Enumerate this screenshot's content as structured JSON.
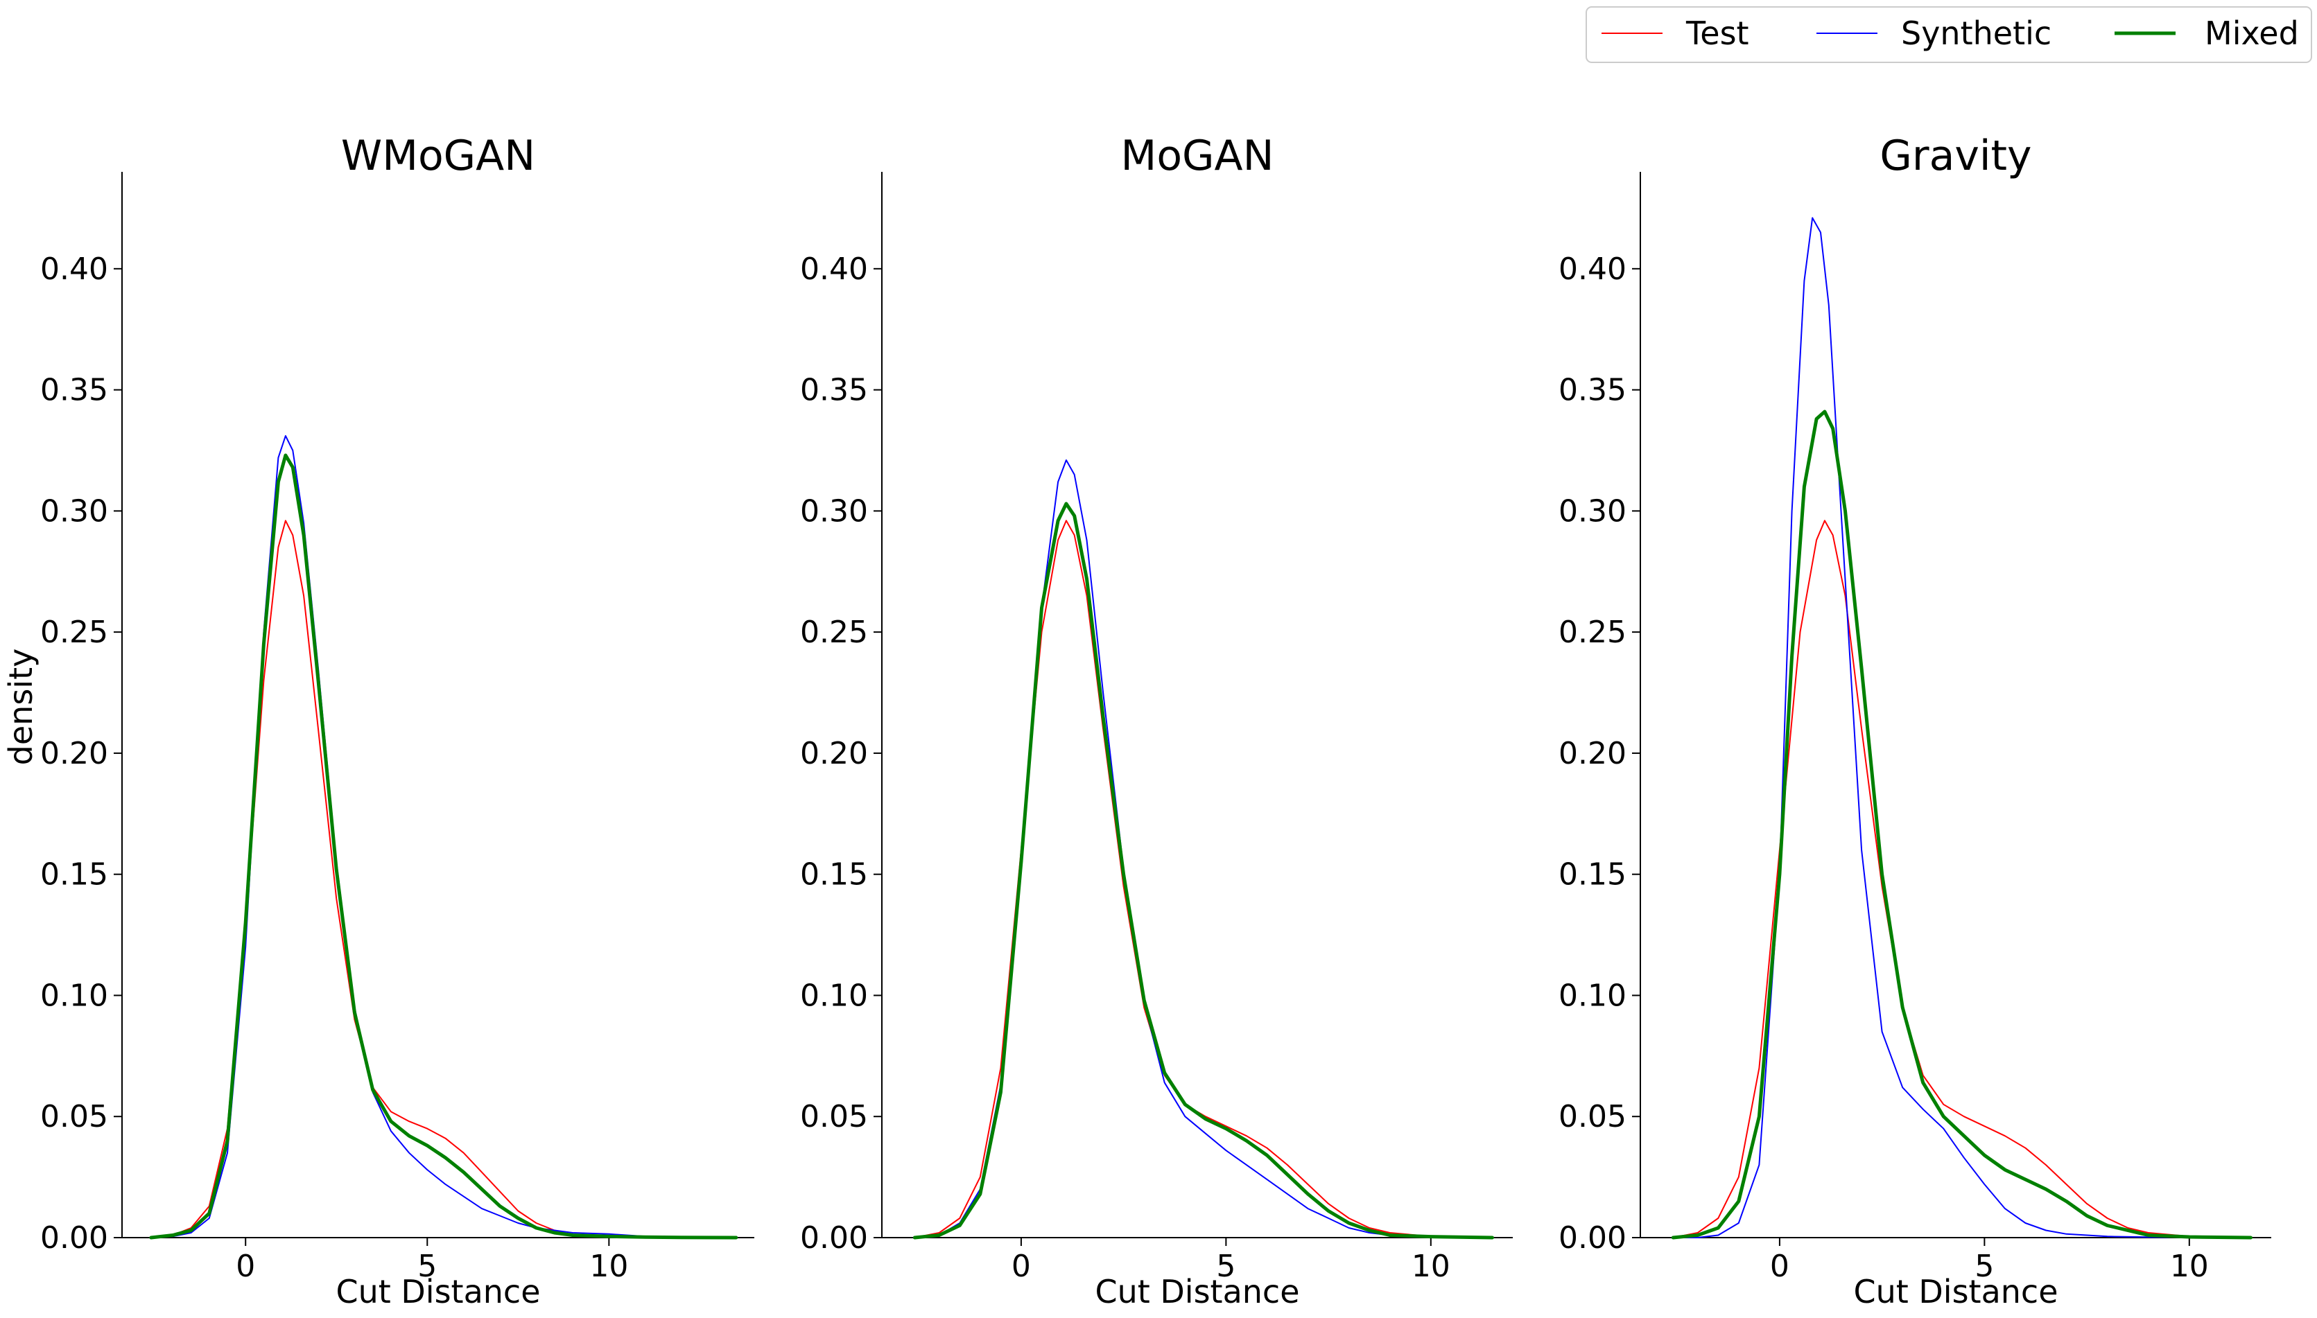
{
  "chart_data": [
    {
      "type": "line",
      "title": "WMoGAN",
      "xlabel": "Cut Distance",
      "ylabel": "density",
      "xlim": [
        -3.4,
        14.0
      ],
      "ylim": [
        0,
        0.44
      ],
      "xticks": [
        0,
        5,
        10
      ],
      "yticks": [
        0.0,
        0.05,
        0.1,
        0.15,
        0.2,
        0.25,
        0.3,
        0.35,
        0.4
      ],
      "ytick_labels": [
        "0.00",
        "0.05",
        "0.10",
        "0.15",
        "0.20",
        "0.25",
        "0.30",
        "0.35",
        "0.40"
      ],
      "series": [
        {
          "name": "Test",
          "color": "#ff0000",
          "x": [
            -2.6,
            -2.0,
            -1.5,
            -1.0,
            -0.5,
            0.0,
            0.5,
            0.9,
            1.1,
            1.3,
            1.6,
            2.0,
            2.5,
            3.0,
            3.5,
            4.0,
            4.5,
            5.0,
            5.5,
            6.0,
            6.5,
            7.0,
            7.5,
            8.0,
            8.5,
            9.0,
            10.0,
            11.0,
            12.0,
            13.5
          ],
          "y": [
            0.0,
            0.001,
            0.004,
            0.013,
            0.045,
            0.13,
            0.23,
            0.285,
            0.296,
            0.29,
            0.265,
            0.21,
            0.14,
            0.09,
            0.062,
            0.052,
            0.048,
            0.045,
            0.041,
            0.035,
            0.027,
            0.019,
            0.011,
            0.006,
            0.003,
            0.001,
            0.0005,
            0.0002,
            0.0001,
            0.0
          ]
        },
        {
          "name": "Synthetic",
          "color": "#0000ff",
          "x": [
            -2.6,
            -2.0,
            -1.5,
            -1.0,
            -0.5,
            0.0,
            0.5,
            0.9,
            1.1,
            1.3,
            1.6,
            2.0,
            2.5,
            3.0,
            3.5,
            4.0,
            4.5,
            5.0,
            5.5,
            6.0,
            6.5,
            7.0,
            7.5,
            8.0,
            8.5,
            9.0,
            10.0,
            11.0,
            12.0,
            13.5
          ],
          "y": [
            0.0,
            0.0005,
            0.002,
            0.008,
            0.035,
            0.12,
            0.25,
            0.322,
            0.331,
            0.325,
            0.295,
            0.235,
            0.155,
            0.095,
            0.06,
            0.044,
            0.035,
            0.028,
            0.022,
            0.017,
            0.012,
            0.009,
            0.006,
            0.004,
            0.003,
            0.002,
            0.0015,
            0.0005,
            0.0002,
            0.0
          ]
        },
        {
          "name": "Mixed",
          "color": "#008000",
          "x": [
            -2.6,
            -2.0,
            -1.5,
            -1.0,
            -0.5,
            0.0,
            0.5,
            0.9,
            1.1,
            1.3,
            1.6,
            2.0,
            2.5,
            3.0,
            3.5,
            4.0,
            4.5,
            5.0,
            5.5,
            6.0,
            6.5,
            7.0,
            7.5,
            8.0,
            8.5,
            9.0,
            10.0,
            11.0,
            12.0,
            13.5
          ],
          "y": [
            0.0,
            0.001,
            0.003,
            0.01,
            0.04,
            0.13,
            0.245,
            0.312,
            0.323,
            0.318,
            0.29,
            0.23,
            0.152,
            0.093,
            0.061,
            0.048,
            0.042,
            0.038,
            0.033,
            0.027,
            0.02,
            0.013,
            0.008,
            0.004,
            0.002,
            0.001,
            0.0005,
            0.0002,
            0.0001,
            0.0
          ]
        }
      ]
    },
    {
      "type": "line",
      "title": "MoGAN",
      "xlabel": "Cut Distance",
      "ylabel": "",
      "xlim": [
        -3.4,
        12.0
      ],
      "ylim": [
        0,
        0.44
      ],
      "xticks": [
        0,
        5,
        10
      ],
      "yticks": [
        0.0,
        0.05,
        0.1,
        0.15,
        0.2,
        0.25,
        0.3,
        0.35,
        0.4
      ],
      "ytick_labels": [
        "0.00",
        "0.05",
        "0.10",
        "0.15",
        "0.20",
        "0.25",
        "0.30",
        "0.35",
        "0.40"
      ],
      "series": [
        {
          "name": "Test",
          "color": "#ff0000",
          "x": [
            -2.6,
            -2.0,
            -1.5,
            -1.0,
            -0.5,
            0.0,
            0.5,
            0.9,
            1.1,
            1.3,
            1.6,
            2.0,
            2.5,
            3.0,
            3.5,
            4.0,
            4.5,
            5.0,
            5.5,
            6.0,
            6.5,
            7.0,
            7.5,
            8.0,
            8.5,
            9.0,
            10.0,
            11.5
          ],
          "y": [
            0.0,
            0.002,
            0.008,
            0.025,
            0.07,
            0.16,
            0.25,
            0.288,
            0.296,
            0.29,
            0.265,
            0.21,
            0.145,
            0.095,
            0.067,
            0.055,
            0.05,
            0.046,
            0.042,
            0.037,
            0.03,
            0.022,
            0.014,
            0.008,
            0.004,
            0.002,
            0.0005,
            0.0
          ]
        },
        {
          "name": "Synthetic",
          "color": "#0000ff",
          "x": [
            -2.6,
            -2.0,
            -1.5,
            -1.0,
            -0.5,
            0.0,
            0.5,
            0.9,
            1.1,
            1.3,
            1.6,
            2.0,
            2.5,
            3.0,
            3.5,
            4.0,
            4.5,
            5.0,
            5.5,
            6.0,
            6.5,
            7.0,
            7.5,
            8.0,
            8.5,
            9.0,
            10.0,
            11.5
          ],
          "y": [
            0.0,
            0.001,
            0.006,
            0.02,
            0.063,
            0.155,
            0.26,
            0.312,
            0.321,
            0.315,
            0.288,
            0.225,
            0.152,
            0.097,
            0.064,
            0.05,
            0.043,
            0.036,
            0.03,
            0.024,
            0.018,
            0.012,
            0.008,
            0.004,
            0.002,
            0.001,
            0.0003,
            0.0
          ]
        },
        {
          "name": "Mixed",
          "color": "#008000",
          "x": [
            -2.6,
            -2.0,
            -1.5,
            -1.0,
            -0.5,
            0.0,
            0.5,
            0.9,
            1.1,
            1.3,
            1.6,
            2.0,
            2.5,
            3.0,
            3.5,
            4.0,
            4.5,
            5.0,
            5.5,
            6.0,
            6.5,
            7.0,
            7.5,
            8.0,
            8.5,
            9.0,
            10.0,
            11.5
          ],
          "y": [
            0.0,
            0.001,
            0.005,
            0.018,
            0.06,
            0.155,
            0.26,
            0.296,
            0.303,
            0.298,
            0.272,
            0.215,
            0.15,
            0.098,
            0.068,
            0.055,
            0.049,
            0.045,
            0.04,
            0.034,
            0.026,
            0.018,
            0.011,
            0.006,
            0.003,
            0.001,
            0.0004,
            0.0
          ]
        }
      ]
    },
    {
      "type": "line",
      "title": "Gravity",
      "xlabel": "Cut Distance",
      "ylabel": "",
      "xlim": [
        -3.4,
        12.0
      ],
      "ylim": [
        0,
        0.44
      ],
      "xticks": [
        0,
        5,
        10
      ],
      "yticks": [
        0.0,
        0.05,
        0.1,
        0.15,
        0.2,
        0.25,
        0.3,
        0.35,
        0.4
      ],
      "ytick_labels": [
        "0.00",
        "0.05",
        "0.10",
        "0.15",
        "0.20",
        "0.25",
        "0.30",
        "0.35",
        "0.40"
      ],
      "series": [
        {
          "name": "Test",
          "color": "#ff0000",
          "x": [
            -2.6,
            -2.0,
            -1.5,
            -1.0,
            -0.5,
            0.0,
            0.5,
            0.9,
            1.1,
            1.3,
            1.6,
            2.0,
            2.5,
            3.0,
            3.5,
            4.0,
            4.5,
            5.0,
            5.5,
            6.0,
            6.5,
            7.0,
            7.5,
            8.0,
            8.5,
            9.0,
            10.0,
            11.5
          ],
          "y": [
            0.0,
            0.002,
            0.008,
            0.025,
            0.07,
            0.16,
            0.25,
            0.288,
            0.296,
            0.29,
            0.265,
            0.21,
            0.145,
            0.095,
            0.067,
            0.055,
            0.05,
            0.046,
            0.042,
            0.037,
            0.03,
            0.022,
            0.014,
            0.008,
            0.004,
            0.002,
            0.0005,
            0.0
          ]
        },
        {
          "name": "Synthetic",
          "color": "#0000ff",
          "x": [
            -2.6,
            -2.0,
            -1.5,
            -1.0,
            -0.5,
            0.0,
            0.3,
            0.6,
            0.8,
            1.0,
            1.2,
            1.5,
            2.0,
            2.5,
            3.0,
            3.5,
            4.0,
            4.5,
            5.0,
            5.5,
            6.0,
            6.5,
            7.0,
            7.5,
            8.0,
            9.0,
            10.0,
            11.5
          ],
          "y": [
            0.0,
            0.0,
            0.001,
            0.006,
            0.03,
            0.15,
            0.3,
            0.395,
            0.421,
            0.415,
            0.385,
            0.3,
            0.16,
            0.085,
            0.062,
            0.053,
            0.045,
            0.033,
            0.022,
            0.012,
            0.006,
            0.003,
            0.0015,
            0.001,
            0.0005,
            0.0002,
            0.0001,
            0.0
          ]
        },
        {
          "name": "Mixed",
          "color": "#008000",
          "x": [
            -2.6,
            -2.0,
            -1.5,
            -1.0,
            -0.5,
            0.0,
            0.3,
            0.6,
            0.9,
            1.1,
            1.3,
            1.6,
            2.0,
            2.5,
            3.0,
            3.5,
            4.0,
            4.5,
            5.0,
            5.5,
            6.0,
            6.5,
            7.0,
            7.5,
            8.0,
            9.0,
            10.0,
            11.5
          ],
          "y": [
            0.0,
            0.001,
            0.004,
            0.015,
            0.05,
            0.15,
            0.24,
            0.31,
            0.338,
            0.341,
            0.334,
            0.3,
            0.235,
            0.15,
            0.095,
            0.064,
            0.05,
            0.042,
            0.034,
            0.028,
            0.024,
            0.02,
            0.015,
            0.009,
            0.005,
            0.001,
            0.0003,
            0.0
          ]
        }
      ]
    }
  ],
  "legend": {
    "placement": "top-right",
    "entries": [
      {
        "label": "Test",
        "color": "#ff0000"
      },
      {
        "label": "Synthetic",
        "color": "#0000ff"
      },
      {
        "label": "Mixed",
        "color": "#008000"
      }
    ]
  }
}
